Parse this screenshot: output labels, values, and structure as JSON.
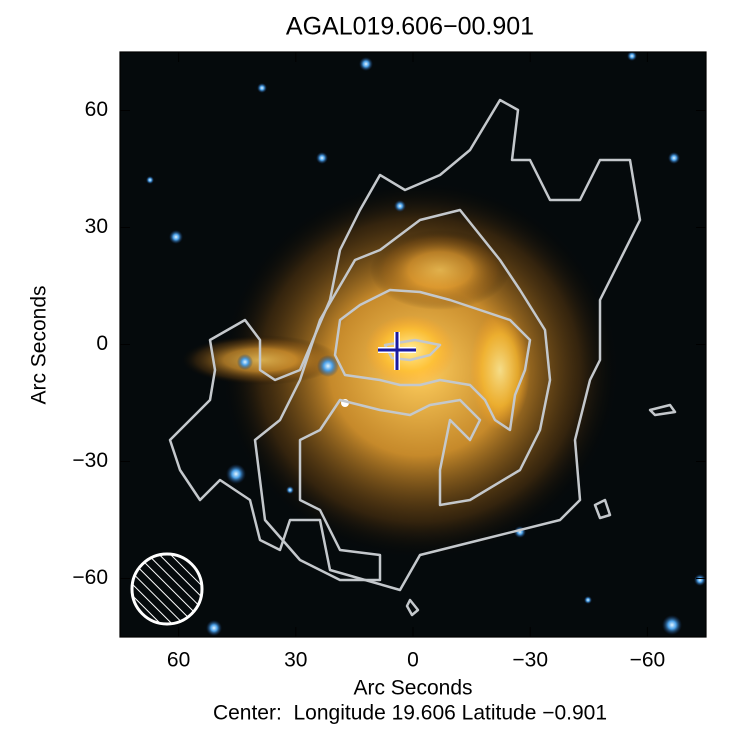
{
  "chart_data": {
    "type": "image",
    "title": "AGAL019.606−00.901",
    "xlabel": "Arc Seconds",
    "ylabel": "Arc Seconds",
    "caption": "Center:  Longitude 19.606 Latitude −0.901",
    "xlim": [
      75,
      -75
    ],
    "ylim": [
      -75,
      75
    ],
    "xticks": [
      60,
      30,
      0,
      {
        "value": -30,
        "label": "−30"
      },
      {
        "value": -60,
        "label": "−60"
      }
    ],
    "yticks": [
      {
        "value": -60,
        "label": "−60"
      },
      {
        "value": -30,
        "label": "−30"
      },
      0,
      30,
      60
    ]
  }
}
